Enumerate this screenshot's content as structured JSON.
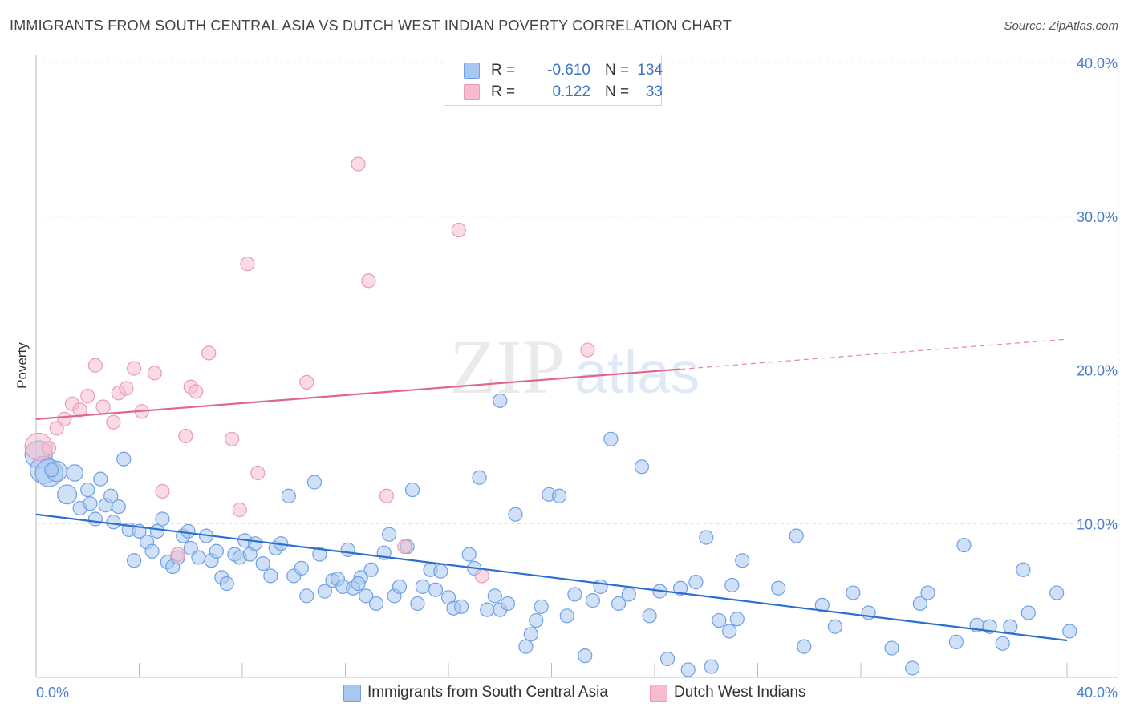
{
  "title": "IMMIGRANTS FROM SOUTH CENTRAL ASIA VS DUTCH WEST INDIAN POVERTY CORRELATION CHART",
  "source": "Source: ZipAtlas.com",
  "watermark": {
    "zip": "ZIP",
    "atlas": "atlas"
  },
  "legend_top": {
    "rows": [
      {
        "r_label": "R =",
        "r_value": "-0.610",
        "n_label": "N =",
        "n_value": "134",
        "color": "#a9c8f0"
      },
      {
        "r_label": "R =",
        "r_value": "0.122",
        "n_label": "N =",
        "n_value": "33",
        "color": "#f6bccd"
      }
    ]
  },
  "legend_bottom": [
    {
      "label": "Immigrants from South Central Asia",
      "color": "#a9c8f0"
    },
    {
      "label": "Dutch West Indians",
      "color": "#f6bccd"
    }
  ],
  "chart_data": {
    "type": "scatter",
    "xlabel": "",
    "ylabel": "Poverty",
    "xlim": [
      0,
      40
    ],
    "ylim": [
      0,
      40
    ],
    "x_tick_labels": [
      "0.0%",
      "40.0%"
    ],
    "y_tick_labels": [
      "10.0%",
      "20.0%",
      "30.0%",
      "40.0%"
    ],
    "y_ticks": [
      10,
      20,
      30,
      40
    ],
    "grid": true,
    "series": [
      {
        "name": "Immigrants from South Central Asia",
        "color": "#6fa0e6",
        "fill": "#a9c8f0",
        "trend": {
          "x0": 0,
          "y0": 10.6,
          "x1": 40,
          "y1": 2.4,
          "color": "#2a6fd0",
          "solid_until": 40
        },
        "points": [
          [
            0.1,
            14.5,
            2
          ],
          [
            0.3,
            13.5,
            2
          ],
          [
            0.5,
            13.3,
            2
          ],
          [
            0.8,
            13.4,
            1.5
          ],
          [
            1.5,
            13.3,
            1.2
          ],
          [
            2.5,
            12.9,
            1
          ],
          [
            1.2,
            11.9,
            1.4
          ],
          [
            1.7,
            11.0,
            1
          ],
          [
            2.0,
            12.2,
            1
          ],
          [
            2.1,
            11.3,
            1
          ],
          [
            2.3,
            10.3,
            1
          ],
          [
            2.7,
            11.2,
            1
          ],
          [
            3.2,
            11.1,
            1
          ],
          [
            3.4,
            14.2,
            1
          ],
          [
            3.0,
            10.1,
            1
          ],
          [
            3.6,
            9.6,
            1
          ],
          [
            3.8,
            7.6,
            1
          ],
          [
            4.0,
            9.5,
            1
          ],
          [
            4.3,
            8.8,
            1
          ],
          [
            4.5,
            8.2,
            1
          ],
          [
            4.7,
            9.5,
            1
          ],
          [
            4.9,
            10.3,
            1
          ],
          [
            5.1,
            7.5,
            1
          ],
          [
            5.3,
            7.2,
            1
          ],
          [
            5.5,
            7.8,
            1
          ],
          [
            5.7,
            9.2,
            1
          ],
          [
            6.0,
            8.4,
            1
          ],
          [
            6.3,
            7.8,
            1
          ],
          [
            6.6,
            9.2,
            1
          ],
          [
            6.8,
            7.6,
            1
          ],
          [
            7.0,
            8.2,
            1
          ],
          [
            7.2,
            6.5,
            1
          ],
          [
            7.4,
            6.1,
            1
          ],
          [
            7.7,
            8.0,
            1
          ],
          [
            7.9,
            7.8,
            1
          ],
          [
            8.1,
            8.9,
            1
          ],
          [
            8.3,
            8.0,
            1
          ],
          [
            8.5,
            8.7,
            1
          ],
          [
            8.8,
            7.4,
            1
          ],
          [
            9.1,
            6.6,
            1
          ],
          [
            9.3,
            8.4,
            1
          ],
          [
            9.5,
            8.7,
            1
          ],
          [
            9.8,
            11.8,
            1
          ],
          [
            10.0,
            6.6,
            1
          ],
          [
            10.3,
            7.1,
            1
          ],
          [
            10.5,
            5.3,
            1
          ],
          [
            10.8,
            12.7,
            1
          ],
          [
            11.0,
            8.0,
            1
          ],
          [
            11.2,
            5.6,
            1
          ],
          [
            11.5,
            6.3,
            1
          ],
          [
            11.7,
            6.4,
            1
          ],
          [
            11.9,
            5.9,
            1
          ],
          [
            12.1,
            8.3,
            1
          ],
          [
            12.3,
            5.8,
            1
          ],
          [
            12.6,
            6.5,
            1
          ],
          [
            12.8,
            5.3,
            1
          ],
          [
            13.0,
            7.0,
            1
          ],
          [
            13.2,
            4.8,
            1
          ],
          [
            13.5,
            8.1,
            1
          ],
          [
            13.7,
            9.3,
            1
          ],
          [
            13.9,
            5.3,
            1
          ],
          [
            14.1,
            5.9,
            1
          ],
          [
            14.4,
            8.5,
            1
          ],
          [
            14.6,
            12.2,
            1
          ],
          [
            14.8,
            4.8,
            1
          ],
          [
            15.0,
            5.9,
            1
          ],
          [
            15.3,
            7.0,
            1
          ],
          [
            15.5,
            5.7,
            1
          ],
          [
            15.7,
            6.9,
            1
          ],
          [
            16.0,
            5.2,
            1
          ],
          [
            16.2,
            4.5,
            1
          ],
          [
            16.5,
            4.6,
            1
          ],
          [
            16.8,
            8.0,
            1
          ],
          [
            17.0,
            7.1,
            1
          ],
          [
            17.2,
            13.0,
            1
          ],
          [
            17.5,
            4.4,
            1
          ],
          [
            17.8,
            5.3,
            1
          ],
          [
            18.0,
            4.4,
            1
          ],
          [
            18.3,
            4.8,
            1
          ],
          [
            18.6,
            10.6,
            1
          ],
          [
            19.0,
            2.0,
            1
          ],
          [
            19.2,
            2.8,
            1
          ],
          [
            19.4,
            3.7,
            1
          ],
          [
            19.6,
            4.6,
            1
          ],
          [
            19.9,
            11.9,
            1
          ],
          [
            20.3,
            11.8,
            1
          ],
          [
            20.6,
            4.0,
            1
          ],
          [
            20.9,
            5.4,
            1
          ],
          [
            21.3,
            1.4,
            1
          ],
          [
            21.6,
            5.0,
            1
          ],
          [
            21.9,
            5.9,
            1
          ],
          [
            22.3,
            15.5,
            1
          ],
          [
            22.6,
            4.8,
            1
          ],
          [
            23.0,
            5.4,
            1
          ],
          [
            23.5,
            13.7,
            1
          ],
          [
            23.8,
            4.0,
            1
          ],
          [
            24.2,
            5.6,
            1
          ],
          [
            24.5,
            1.2,
            1
          ],
          [
            25.0,
            5.8,
            1
          ],
          [
            25.3,
            0.5,
            1
          ],
          [
            25.6,
            6.2,
            1
          ],
          [
            26.0,
            9.1,
            1
          ],
          [
            26.2,
            0.7,
            1
          ],
          [
            26.5,
            3.7,
            1
          ],
          [
            26.9,
            3.0,
            1
          ],
          [
            27.2,
            3.8,
            1
          ],
          [
            27.4,
            7.6,
            1
          ],
          [
            28.8,
            5.8,
            1
          ],
          [
            29.5,
            9.2,
            1
          ],
          [
            29.8,
            2.0,
            1
          ],
          [
            30.5,
            4.7,
            1
          ],
          [
            31.0,
            3.3,
            1
          ],
          [
            31.7,
            5.5,
            1
          ],
          [
            32.3,
            4.2,
            1
          ],
          [
            33.2,
            1.9,
            1
          ],
          [
            34.0,
            0.6,
            1
          ],
          [
            34.3,
            4.8,
            1
          ],
          [
            34.6,
            5.5,
            1
          ],
          [
            36.0,
            8.6,
            1
          ],
          [
            36.5,
            3.4,
            1
          ],
          [
            37.0,
            3.3,
            1
          ],
          [
            37.5,
            2.2,
            1
          ],
          [
            37.8,
            3.3,
            1
          ],
          [
            38.3,
            7.0,
            1
          ],
          [
            38.5,
            4.2,
            1
          ],
          [
            39.6,
            5.5,
            1
          ],
          [
            40.1,
            3.0,
            1
          ],
          [
            0.6,
            13.5,
            1
          ],
          [
            2.9,
            11.8,
            1
          ],
          [
            18.0,
            18.0,
            1
          ],
          [
            5.9,
            9.5,
            1
          ],
          [
            12.5,
            6.1,
            1
          ],
          [
            27.0,
            6.0,
            1
          ],
          [
            35.7,
            2.3,
            1
          ]
        ]
      },
      {
        "name": "Dutch West Indians",
        "color": "#ea9bb3",
        "fill": "#f6bccd",
        "trend": {
          "x0": 0,
          "y0": 16.8,
          "x1": 40,
          "y1": 22.0,
          "color": "#e0668e",
          "solid_until": 25
        },
        "points": [
          [
            0.1,
            15.0,
            2
          ],
          [
            0.5,
            14.9,
            1
          ],
          [
            0.8,
            16.2,
            1
          ],
          [
            1.1,
            16.8,
            1
          ],
          [
            1.4,
            17.8,
            1
          ],
          [
            1.7,
            17.4,
            1
          ],
          [
            2.0,
            18.3,
            1
          ],
          [
            2.3,
            20.3,
            1
          ],
          [
            2.6,
            17.6,
            1
          ],
          [
            3.0,
            16.6,
            1
          ],
          [
            3.2,
            18.5,
            1
          ],
          [
            3.5,
            18.8,
            1
          ],
          [
            3.8,
            20.1,
            1
          ],
          [
            4.1,
            17.3,
            1
          ],
          [
            4.6,
            19.8,
            1
          ],
          [
            4.9,
            12.1,
            1
          ],
          [
            5.5,
            8.0,
            1
          ],
          [
            5.8,
            15.7,
            1
          ],
          [
            6.0,
            18.9,
            1
          ],
          [
            6.2,
            18.6,
            1
          ],
          [
            6.7,
            21.1,
            1
          ],
          [
            7.6,
            15.5,
            1
          ],
          [
            7.9,
            10.9,
            1
          ],
          [
            8.2,
            26.9,
            1
          ],
          [
            8.6,
            13.3,
            1
          ],
          [
            10.5,
            19.2,
            1
          ],
          [
            12.5,
            33.4,
            1
          ],
          [
            12.9,
            25.8,
            1
          ],
          [
            13.6,
            11.8,
            1
          ],
          [
            14.3,
            8.5,
            1
          ],
          [
            16.4,
            29.1,
            1
          ],
          [
            17.3,
            6.6,
            1
          ],
          [
            21.4,
            21.3,
            1
          ]
        ]
      }
    ]
  }
}
